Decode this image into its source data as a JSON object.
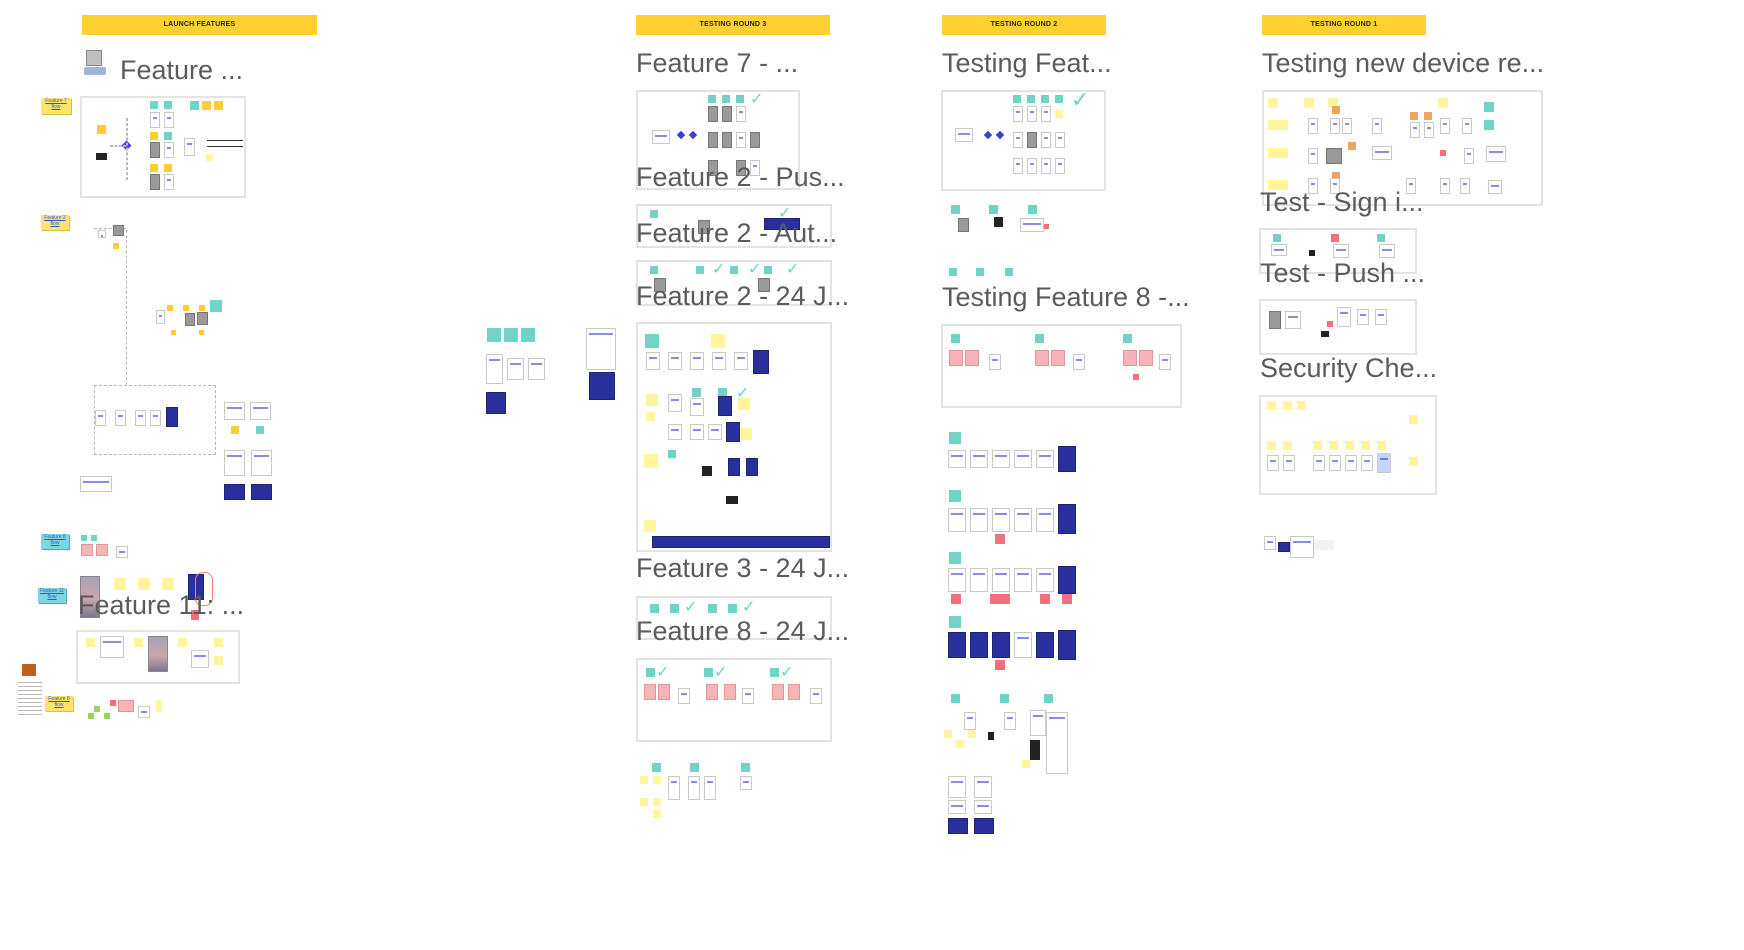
{
  "board": {
    "columns": [
      {
        "header": "LAUNCH FEATURES",
        "frames": [
          "Feature ...",
          "Feature 11: ..."
        ]
      },
      {
        "header": "TESTING ROUND 3",
        "frames": [
          "Feature 7 - ...",
          "Feature 2 - Pus...",
          "Feature 2 - Aut...",
          "Feature 2 - 24 J...",
          "Feature 3 - 24 J...",
          "Feature 8 - 24 J..."
        ]
      },
      {
        "header": "TESTING ROUND 2",
        "frames": [
          "Testing Feat...",
          "Testing Feature 8 -..."
        ]
      },
      {
        "header": "TESTING ROUND 1",
        "frames": [
          "Testing new device re...",
          "Test - Sign i...",
          "Test - Push ...",
          "Security Che..."
        ]
      }
    ],
    "notes": [
      "Feature 7 flow",
      "Feature 2 flow",
      "Feature 8 flow",
      "Feature 11 flow",
      "Feature 8 flow"
    ]
  },
  "colors": {
    "header": "#ffd02f",
    "sticky_yellow": "#fff59d",
    "sticky_orange": "#ffcc33",
    "sticky_teal": "#6fd3c6",
    "sticky_red": "#f0707c",
    "accent_blue": "#3a3fd0",
    "frame_border": "#e3e3e3"
  }
}
